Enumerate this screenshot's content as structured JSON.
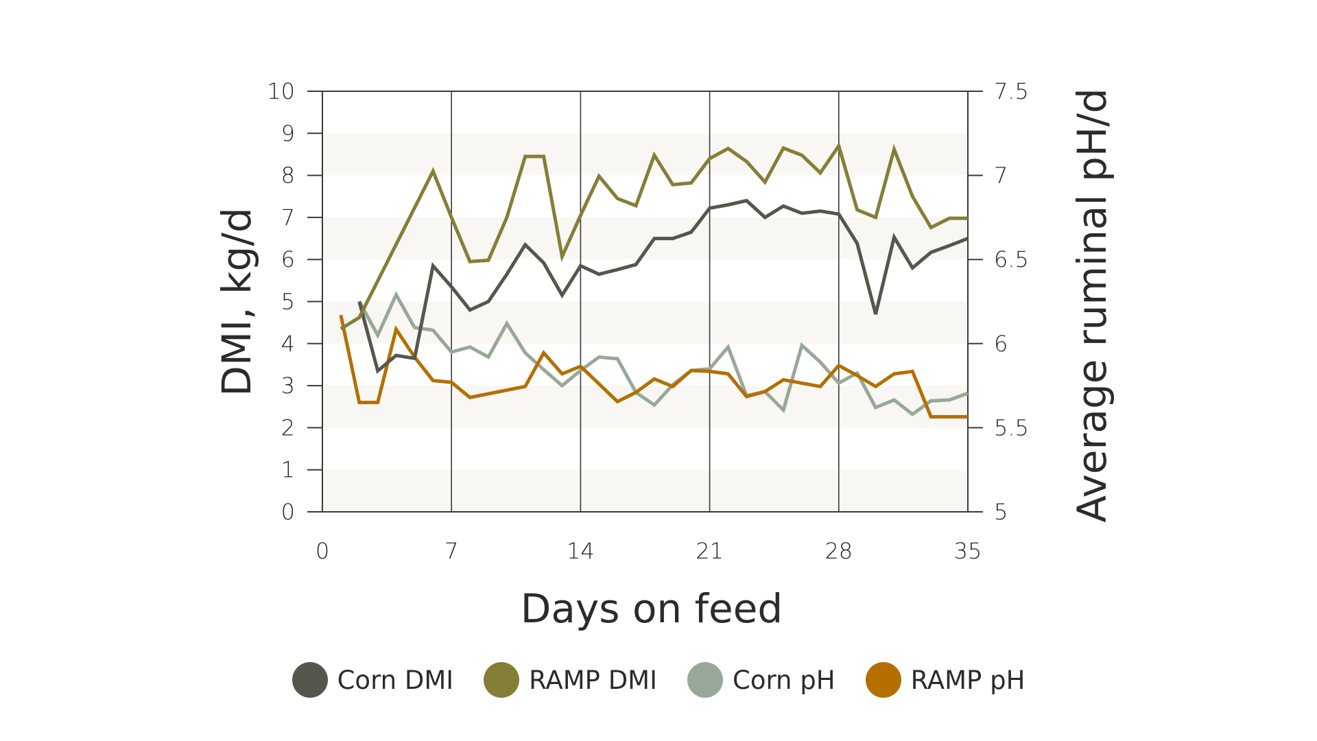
{
  "chart_data": {
    "type": "line",
    "title": "",
    "xlabel": "Days on feed",
    "ylabel": "DMI, kg/d",
    "y2label": "Average ruminal pH/d",
    "xlim": [
      0,
      35
    ],
    "ylim": [
      0,
      10
    ],
    "y2lim": [
      5,
      7.5
    ],
    "xticks": [
      "0",
      "7",
      "14",
      "21",
      "28",
      "35"
    ],
    "xtick_values": [
      0,
      7,
      14,
      21,
      28,
      35
    ],
    "yticks": [
      "0",
      "1",
      "2",
      "3",
      "4",
      "5",
      "6",
      "7",
      "8",
      "9",
      "10"
    ],
    "y2ticks": [
      "5",
      "5.5",
      "6",
      "6.5",
      "7",
      "7.5"
    ],
    "grid": "horizontal bands every 1 DMI unit; vertical lines at weekly ticks",
    "legend_position": "bottom",
    "series": [
      {
        "name": "Corn DMI",
        "axis": "left",
        "color": "#55564c",
        "x": [
          2,
          3,
          4,
          5,
          6,
          7,
          8,
          9,
          10,
          11,
          12,
          13,
          14,
          15,
          16,
          17,
          18,
          19,
          20,
          21,
          22,
          23,
          24,
          25,
          26,
          27,
          28,
          29,
          30,
          31,
          32,
          33,
          34,
          35
        ],
        "values": [
          5.0,
          3.35,
          3.72,
          3.65,
          5.85,
          5.35,
          4.8,
          5.0,
          5.65,
          6.35,
          5.92,
          5.15,
          5.85,
          5.65,
          5.76,
          5.88,
          6.5,
          6.5,
          6.65,
          7.22,
          7.3,
          7.4,
          7.0,
          7.27,
          7.1,
          7.15,
          7.08,
          6.38,
          4.7,
          6.53,
          5.8,
          6.17,
          6.33,
          6.5
        ]
      },
      {
        "name": "RAMP DMI",
        "axis": "left",
        "color": "#857e37",
        "x": [
          1,
          2,
          6,
          7,
          8,
          9,
          10,
          11,
          12,
          13,
          14,
          15,
          16,
          17,
          18,
          19,
          20,
          21,
          22,
          23,
          24,
          25,
          26,
          27,
          28,
          29,
          30,
          31,
          32,
          33,
          34,
          35
        ],
        "values": [
          4.35,
          4.62,
          8.1,
          7.0,
          5.95,
          5.98,
          7.0,
          8.45,
          8.45,
          6.07,
          7.05,
          7.98,
          7.45,
          7.28,
          8.48,
          7.78,
          7.82,
          8.4,
          8.64,
          8.33,
          7.84,
          8.65,
          8.48,
          8.06,
          8.7,
          7.18,
          7.0,
          8.62,
          7.5,
          6.76,
          6.98,
          6.98
        ]
      },
      {
        "name": "Corn pH",
        "axis": "right",
        "color": "#98a898",
        "x": [
          2,
          3,
          4,
          5,
          6,
          7,
          8,
          9,
          10,
          11,
          12,
          13,
          14,
          15,
          16,
          17,
          18,
          19,
          20,
          21,
          22,
          23,
          24,
          25,
          26,
          27,
          28,
          29,
          30,
          31,
          32,
          33,
          34,
          35
        ],
        "values": [
          6.25,
          6.05,
          6.29,
          6.095,
          6.08,
          5.95,
          5.98,
          5.92,
          6.12,
          5.945,
          5.845,
          5.75,
          5.84,
          5.92,
          5.91,
          5.71,
          5.635,
          5.755,
          5.84,
          5.85,
          5.98,
          5.69,
          5.715,
          5.605,
          5.99,
          5.89,
          5.765,
          5.825,
          5.62,
          5.665,
          5.58,
          5.66,
          5.665,
          5.705
        ]
      },
      {
        "name": "RAMP pH",
        "axis": "right",
        "color": "#b46f00",
        "x": [
          1,
          2,
          3,
          4,
          5,
          6,
          7,
          8,
          11,
          12,
          13,
          14,
          15,
          16,
          17,
          18,
          19,
          20,
          21,
          22,
          23,
          24,
          25,
          26,
          27,
          28,
          29,
          30,
          31,
          32,
          33,
          34,
          35
        ],
        "values": [
          6.17,
          5.65,
          5.65,
          6.085,
          5.92,
          5.78,
          5.77,
          5.68,
          5.745,
          5.945,
          5.82,
          5.865,
          5.76,
          5.655,
          5.71,
          5.79,
          5.745,
          5.84,
          5.835,
          5.82,
          5.685,
          5.715,
          5.785,
          5.765,
          5.745,
          5.87,
          5.81,
          5.745,
          5.82,
          5.835,
          5.565,
          5.565,
          5.565
        ]
      }
    ]
  },
  "colors": {
    "band": "#f8f7f3",
    "axis": "#3a3a3a"
  }
}
